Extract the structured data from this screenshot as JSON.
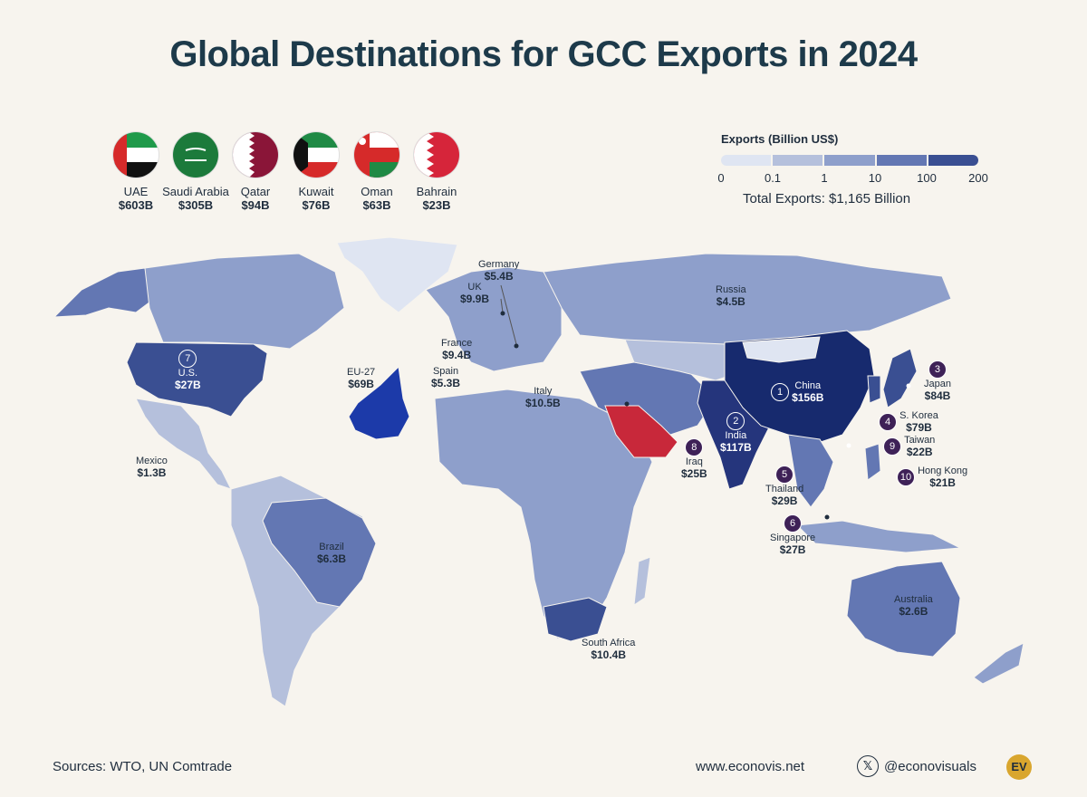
{
  "title": "Global Destinations for GCC Exports in 2024",
  "flags": [
    {
      "name": "UAE",
      "value": "$603B",
      "icon": "uae-flag"
    },
    {
      "name": "Saudi Arabia",
      "value": "$305B",
      "icon": "saudi-arabia-flag"
    },
    {
      "name": "Qatar",
      "value": "$94B",
      "icon": "qatar-flag"
    },
    {
      "name": "Kuwait",
      "value": "$76B",
      "icon": "kuwait-flag"
    },
    {
      "name": "Oman",
      "value": "$63B",
      "icon": "oman-flag"
    },
    {
      "name": "Bahrain",
      "value": "$23B",
      "icon": "bahrain-flag"
    }
  ],
  "legend": {
    "title": "Exports (Billion US$)",
    "ticks": [
      "0",
      "0.1",
      "1",
      "10",
      "100",
      "200"
    ],
    "colors": [
      "#dfe5f2",
      "#b5c0dc",
      "#8e9fcb",
      "#6377b3",
      "#3a4f92",
      "#172a6e"
    ],
    "total": "Total Exports: $1,165 Billion"
  },
  "colors": {
    "gcc": "#c8283a",
    "eu": "#1c3aa9",
    "china": "#172a6e",
    "india": "#25357c",
    "background": "#f7f4ee"
  },
  "labels": {
    "germany": {
      "name": "Germany",
      "value": "$5.4B"
    },
    "uk": {
      "name": "UK",
      "value": "$9.9B"
    },
    "france": {
      "name": "France",
      "value": "$9.4B"
    },
    "spain": {
      "name": "Spain",
      "value": "$5.3B"
    },
    "italy": {
      "name": "Italy",
      "value": "$10.5B"
    },
    "eu": {
      "name": "EU-27",
      "value": "$69B"
    },
    "russia": {
      "name": "Russia",
      "value": "$4.5B"
    },
    "us": {
      "name": "U.S.",
      "value": "$27B",
      "rank": "7"
    },
    "mexico": {
      "name": "Mexico",
      "value": "$1.3B"
    },
    "brazil": {
      "name": "Brazil",
      "value": "$6.3B"
    },
    "southafrica": {
      "name": "South Africa",
      "value": "$10.4B"
    },
    "iraq": {
      "name": "Iraq",
      "value": "$25B",
      "rank": "8"
    },
    "china": {
      "name": "China",
      "value": "$156B",
      "rank": "1"
    },
    "india": {
      "name": "India",
      "value": "$117B",
      "rank": "2"
    },
    "japan": {
      "name": "Japan",
      "value": "$84B",
      "rank": "3"
    },
    "korea": {
      "name": "S. Korea",
      "value": "$79B",
      "rank": "4"
    },
    "taiwan": {
      "name": "Taiwan",
      "value": "$22B",
      "rank": "9"
    },
    "hongkong": {
      "name": "Hong Kong",
      "value": "$21B",
      "rank": "10"
    },
    "thailand": {
      "name": "Thailand",
      "value": "$29B",
      "rank": "5"
    },
    "singapore": {
      "name": "Singapore",
      "value": "$27B",
      "rank": "6"
    },
    "australia": {
      "name": "Australia",
      "value": "$2.6B"
    }
  },
  "footer": {
    "sources": "Sources: WTO, UN Comtrade",
    "website": "www.econovis.net",
    "handle": "@econovisuals",
    "x_icon": "x-logo-icon",
    "logo": "EV"
  }
}
